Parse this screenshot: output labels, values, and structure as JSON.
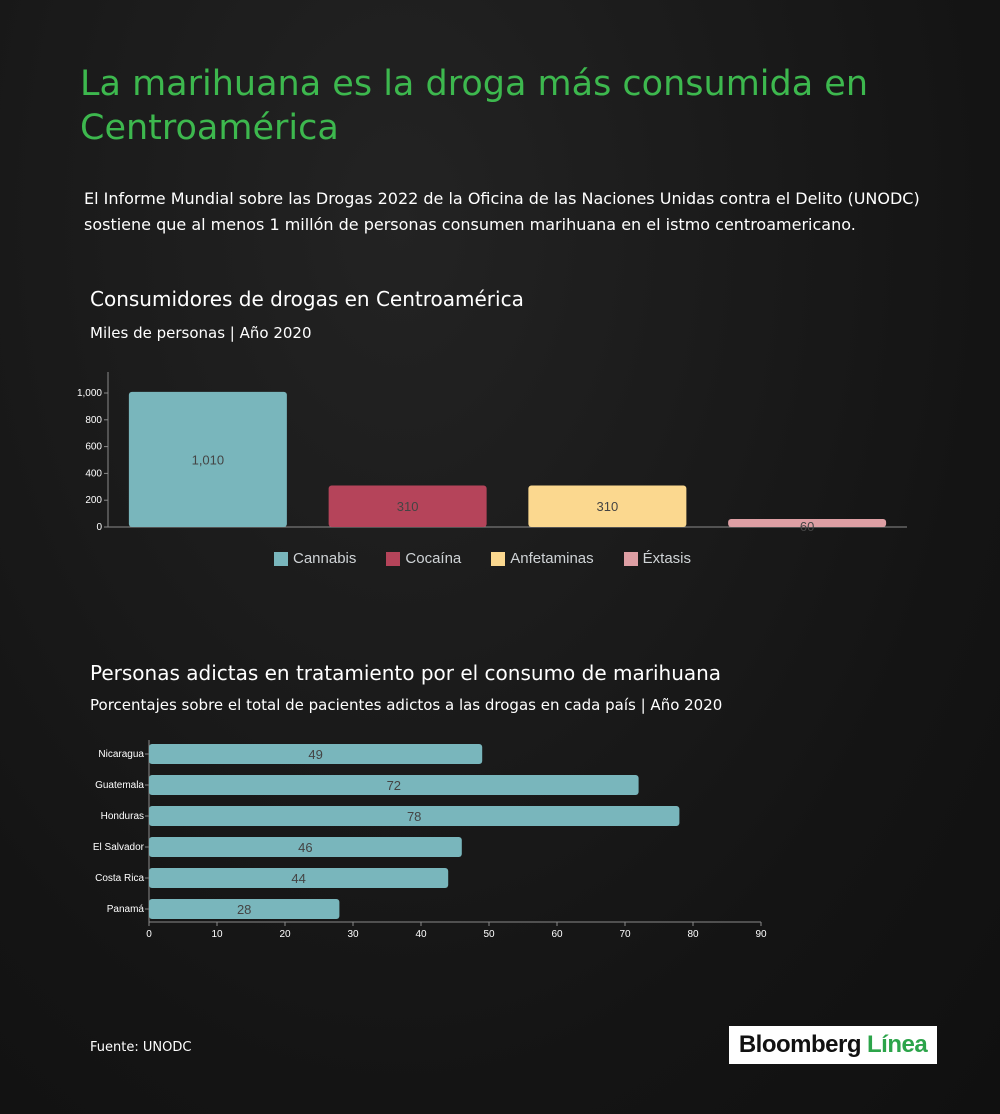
{
  "header": {
    "title": "La marihuana es la droga más consumida en Centroamérica",
    "intro": "El Informe Mundial sobre las Drogas 2022 de la Oficina de las Naciones Unidas contra el Delito (UNODC) sostiene que al menos 1 millón de personas consumen marihuana en el istmo centroamericano."
  },
  "chart_data": [
    {
      "type": "bar",
      "title": "Consumidores de drogas en Centroamérica",
      "subtitle": "Miles de personas | Año 2020",
      "categories": [
        "Cannabis",
        "Cocaína",
        "Anfetaminas",
        "Éxtasis"
      ],
      "values": [
        1010,
        310,
        310,
        60
      ],
      "value_labels": [
        "1,010",
        "310",
        "310",
        "60"
      ],
      "colors": [
        "#79b6bc",
        "#b5445a",
        "#fbd88f",
        "#de9fa4"
      ],
      "ylim": [
        0,
        1000
      ],
      "yticks": [
        0,
        200,
        400,
        600,
        800,
        1000
      ],
      "ytick_labels": [
        "0",
        "200",
        "400",
        "600",
        "800",
        "1,000"
      ],
      "legend": "bottom",
      "grid": false
    },
    {
      "type": "bar",
      "orientation": "horizontal",
      "title": "Personas adictas en tratamiento por el consumo de marihuana",
      "subtitle": "Porcentajes sobre el total de pacientes adictos a las drogas en cada país  | Año 2020",
      "categories": [
        "Nicaragua",
        "Guatemala",
        "Honduras",
        "El Salvador",
        "Costa Rica",
        "Panamá"
      ],
      "values": [
        49,
        72,
        78,
        46,
        44,
        28
      ],
      "color": "#79b6bc",
      "xlim": [
        0,
        90
      ],
      "xticks": [
        0,
        10,
        20,
        30,
        40,
        50,
        60,
        70,
        80,
        90
      ],
      "grid": false
    }
  ],
  "footer": {
    "source": "Fuente: UNODC",
    "logo_text_a": "Bloomberg",
    "logo_text_b": "Línea"
  }
}
